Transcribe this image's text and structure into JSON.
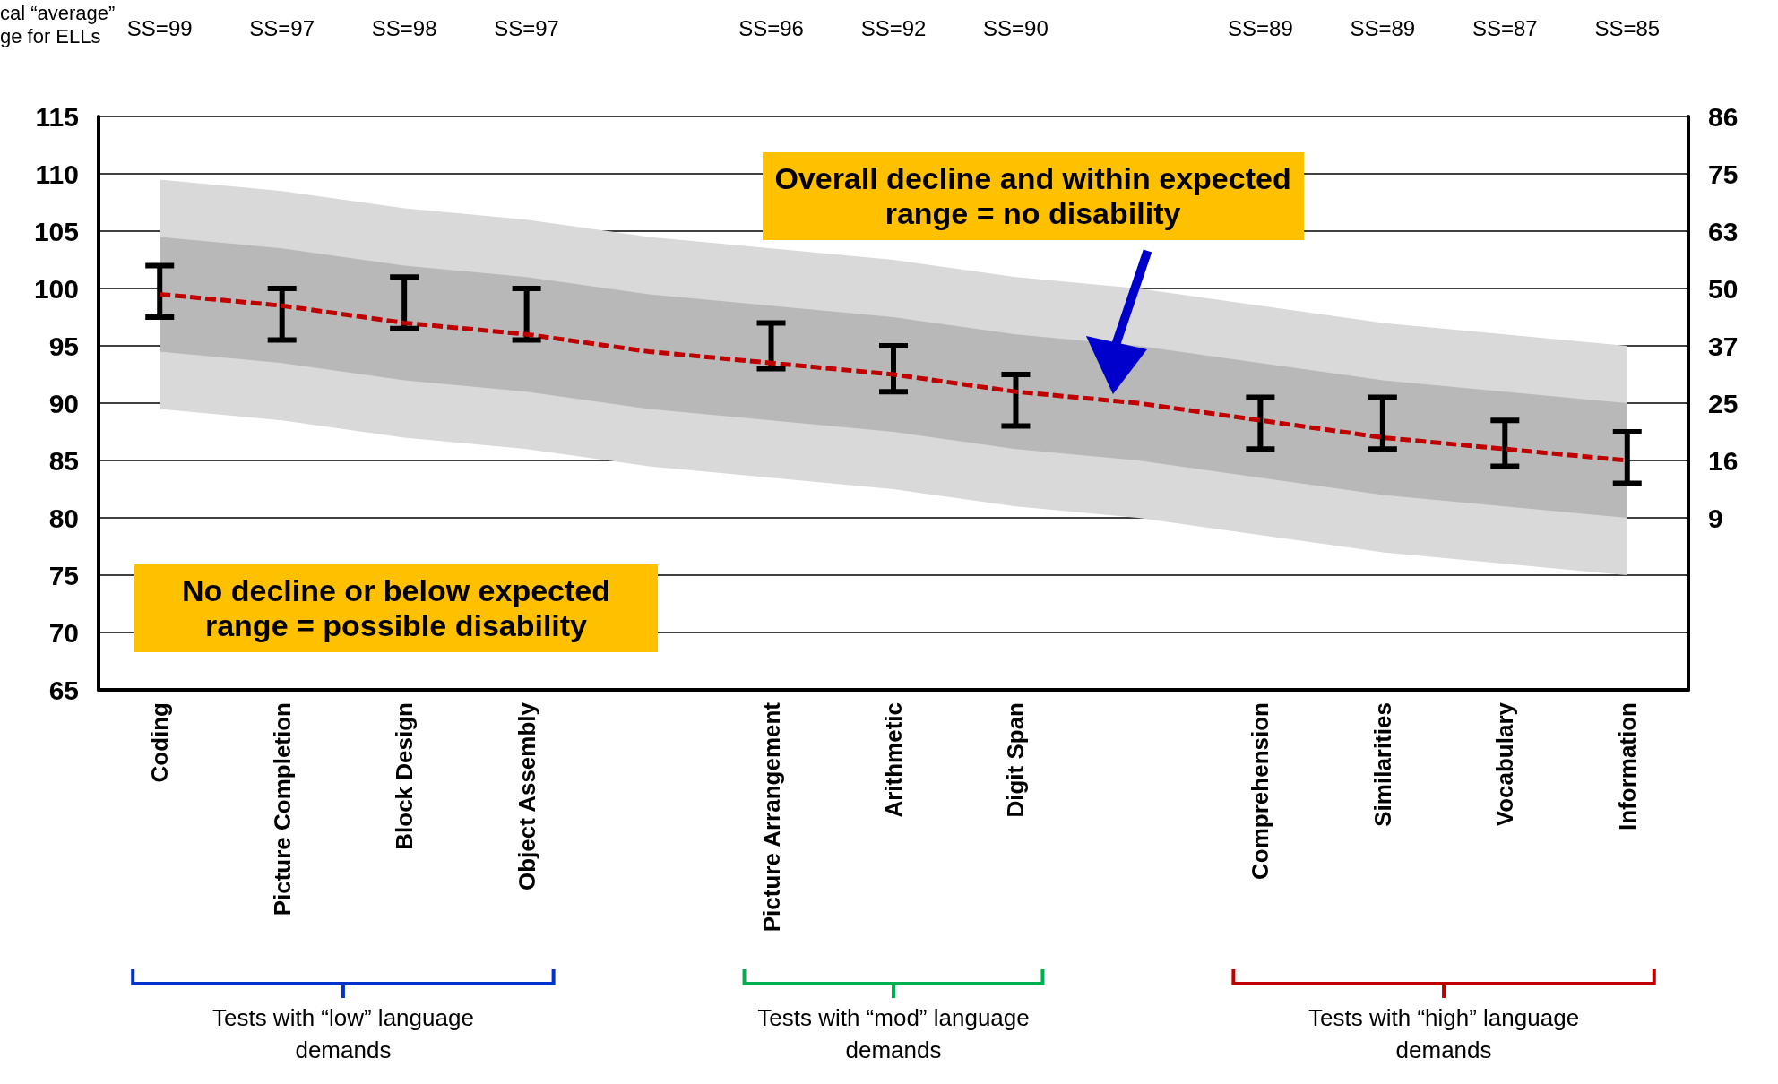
{
  "chart_data": {
    "type": "bar",
    "categories": [
      "Coding",
      "Picture Completion",
      "Block Design",
      "Object Assembly",
      null,
      "Picture Arrangement",
      "Arithmetic",
      "Digit Span",
      null,
      "Comprehension",
      "Similarities",
      "Vocabulary",
      "Information"
    ],
    "series": [
      {
        "type": "line",
        "color": "#d9d9d9",
        "values": [
          null,
          null,
          null,
          null,
          null,
          null,
          null,
          null,
          null,
          null,
          null,
          null,
          null
        ],
        "lower": [
          89.5,
          88.5,
          87,
          86,
          84.5,
          83.5,
          82.5,
          81,
          80,
          78.5,
          77,
          76,
          75
        ],
        "upper": [
          109.5,
          108.5,
          107,
          106,
          104.5,
          103.5,
          102.5,
          101,
          100,
          98.5,
          97,
          96,
          95
        ]
      },
      {
        "type": "line",
        "color": "#c00000",
        "line_style": "dashed",
        "values": [
          99.5,
          98.5,
          97,
          96,
          94.5,
          93.5,
          92.5,
          91,
          90,
          88.5,
          87,
          86,
          85
        ],
        "lower": [
          94.5,
          93.5,
          92,
          91,
          89.5,
          88.5,
          87.5,
          86,
          85,
          83.5,
          82,
          81,
          80
        ],
        "upper": [
          104.5,
          103.5,
          102,
          101,
          99.5,
          98.5,
          97.5,
          96,
          95,
          93.5,
          92,
          91,
          90
        ]
      },
      {
        "color": "#000000",
        "base": [
          97.5,
          95.5,
          96.5,
          95.5,
          null,
          93,
          91,
          88,
          null,
          86,
          86,
          84.5,
          83
        ],
        "values": [
          4.5,
          4.5,
          4.5,
          4.5,
          null,
          4,
          4,
          4.5,
          null,
          4.5,
          4.5,
          4,
          4.5
        ]
      }
    ],
    "marker": "none",
    "ylim": [
      65,
      115
    ],
    "yticks": [
      65,
      70,
      75,
      80,
      85,
      90,
      95,
      100,
      105,
      110,
      115
    ],
    "y2_categories": [
      "86",
      "75",
      "63",
      "50",
      "37",
      "25",
      "16",
      "9",
      null,
      null,
      null
    ],
    "grid": "y",
    "annotations": [
      "cal “average”\nge for ELLs",
      "Overall decline and within expected range = no disability",
      "No decline or below expected range = possible disability",
      "Tests with “low” language demands",
      "Tests with “mod” language demands",
      "Tests with “high” language demands",
      "SS=99",
      "SS=97",
      "SS=98",
      "SS=97",
      "SS=96",
      "SS=92",
      "SS=90",
      "SS=89",
      "SS=89",
      "SS=87",
      "SS=85"
    ]
  }
}
